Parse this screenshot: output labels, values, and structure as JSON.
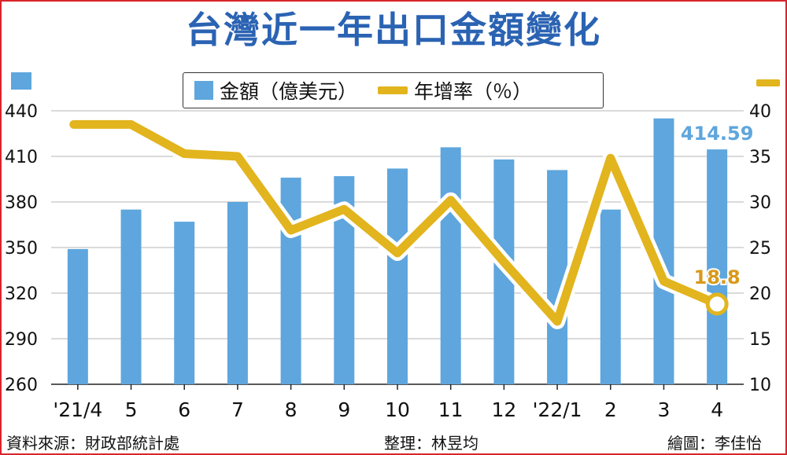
{
  "title": "台灣近一年出口金額變化",
  "legend": {
    "bar_label": "金額（億美元）",
    "line_label": "年增率（％）"
  },
  "footer": {
    "source": "資料來源：財政部統計處",
    "editor": "整理：林昱均",
    "artist": "繪圖：李佳怡"
  },
  "colors": {
    "bar": "#5ea6dd",
    "line": "#e2b41e",
    "frame": "#d9242b",
    "title": "#2b63b3"
  },
  "chart_data": {
    "type": "bar+line",
    "categories": [
      "'21/4",
      "5",
      "6",
      "7",
      "8",
      "9",
      "10",
      "11",
      "12",
      "'22/1",
      "2",
      "3",
      "4"
    ],
    "series": [
      {
        "name": "金額（億美元）",
        "axis": "left",
        "type": "bar",
        "values": [
          349,
          375,
          367,
          380,
          396,
          397,
          402,
          416,
          408,
          401,
          375,
          435,
          414.59
        ]
      },
      {
        "name": "年增率（％）",
        "axis": "right",
        "type": "line",
        "values": [
          38.5,
          38.5,
          35.3,
          35.0,
          26.9,
          29.2,
          24.4,
          30.2,
          23.4,
          16.9,
          34.8,
          21.3,
          18.8
        ]
      }
    ],
    "annotations": [
      "414.59",
      "18.8"
    ],
    "left_axis": {
      "min": 260,
      "max": 440,
      "ticks": [
        260,
        290,
        320,
        350,
        380,
        410,
        440
      ]
    },
    "right_axis": {
      "min": 10,
      "max": 40,
      "ticks": [
        10,
        15,
        20,
        25,
        30,
        35,
        40
      ]
    },
    "grid": true
  }
}
